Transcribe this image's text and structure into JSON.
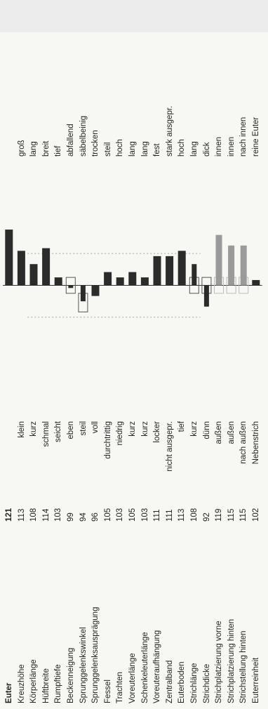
{
  "chart_data": {
    "type": "bar",
    "title": "",
    "center_value": 100,
    "ylim": [
      70,
      130
    ],
    "rows": [
      {
        "trait": "Euter",
        "value": 121,
        "low": "",
        "high": "",
        "kind": "bar"
      },
      {
        "trait": "Kreuzhöhe",
        "value": 113,
        "low": "klein",
        "high": "groß",
        "kind": "bar"
      },
      {
        "trait": "Körperlänge",
        "value": 108,
        "low": "kurz",
        "high": "lang",
        "kind": "bar"
      },
      {
        "trait": "Hüftbreite",
        "value": 114,
        "low": "schmal",
        "high": "breit",
        "kind": "bar"
      },
      {
        "trait": "Rumpftiefe",
        "value": 103,
        "low": "seicht",
        "high": "tief",
        "kind": "bar"
      },
      {
        "trait": "Beckenneigung",
        "value": 99,
        "low": "eben",
        "high": "abfallend",
        "kind": "optimum",
        "box": [
          97,
          103
        ]
      },
      {
        "trait": "Sprunggelenkswinkel",
        "value": 94,
        "low": "steil",
        "high": "säbelbeinig",
        "kind": "optimum",
        "box": [
          90,
          97
        ]
      },
      {
        "trait": "Sprunggelenksausprägung",
        "value": 96,
        "low": "voll",
        "high": "trocken",
        "kind": "bar"
      },
      {
        "trait": "Fessel",
        "value": 105,
        "low": "durchtrittig",
        "high": "steil",
        "kind": "bar"
      },
      {
        "trait": "Trachten",
        "value": 103,
        "low": "niedrig",
        "high": "hoch",
        "kind": "bar"
      },
      {
        "trait": "Voreuterlänge",
        "value": 105,
        "low": "kurz",
        "high": "lang",
        "kind": "bar"
      },
      {
        "trait": "Schenkeleuterlänge",
        "value": 103,
        "low": "kurz",
        "high": "lang",
        "kind": "bar"
      },
      {
        "trait": "Voreuteraufhängung",
        "value": 111,
        "low": "locker",
        "high": "fest",
        "kind": "bar"
      },
      {
        "trait": "Zentralband",
        "value": 111,
        "low": "nicht ausgepr.",
        "high": "stark ausgepr.",
        "kind": "bar"
      },
      {
        "trait": "Euterboden",
        "value": 113,
        "low": "tief",
        "high": "hoch",
        "kind": "bar"
      },
      {
        "trait": "Strichlänge",
        "value": 108,
        "low": "kurz",
        "high": "lang",
        "kind": "optimum",
        "box": [
          97,
          103
        ]
      },
      {
        "trait": "Strichdicke",
        "value": 92,
        "low": "dünn",
        "high": "dick",
        "kind": "optimum",
        "box": [
          97,
          103
        ]
      },
      {
        "trait": "Strichplatzierung vorne",
        "value": 119,
        "low": "außen",
        "high": "innen",
        "kind": "ghost",
        "box": [
          97,
          103
        ]
      },
      {
        "trait": "Strichplatzierung hinten",
        "value": 115,
        "low": "außen",
        "high": "innen",
        "kind": "ghost",
        "box": [
          97,
          103
        ]
      },
      {
        "trait": "Strichstellung hinten",
        "value": 115,
        "low": "nach außen",
        "high": "nach innen",
        "kind": "ghost",
        "box": [
          97,
          103
        ]
      },
      {
        "trait": "Euterreinheit",
        "value": 102,
        "low": "Nebenstrich",
        "high": "reine Euter",
        "kind": "bar"
      }
    ],
    "colors": {
      "bar": "#2b2b2b",
      "ghost": "#9a9a9a",
      "box": "#555555",
      "axis": "#333333"
    }
  }
}
